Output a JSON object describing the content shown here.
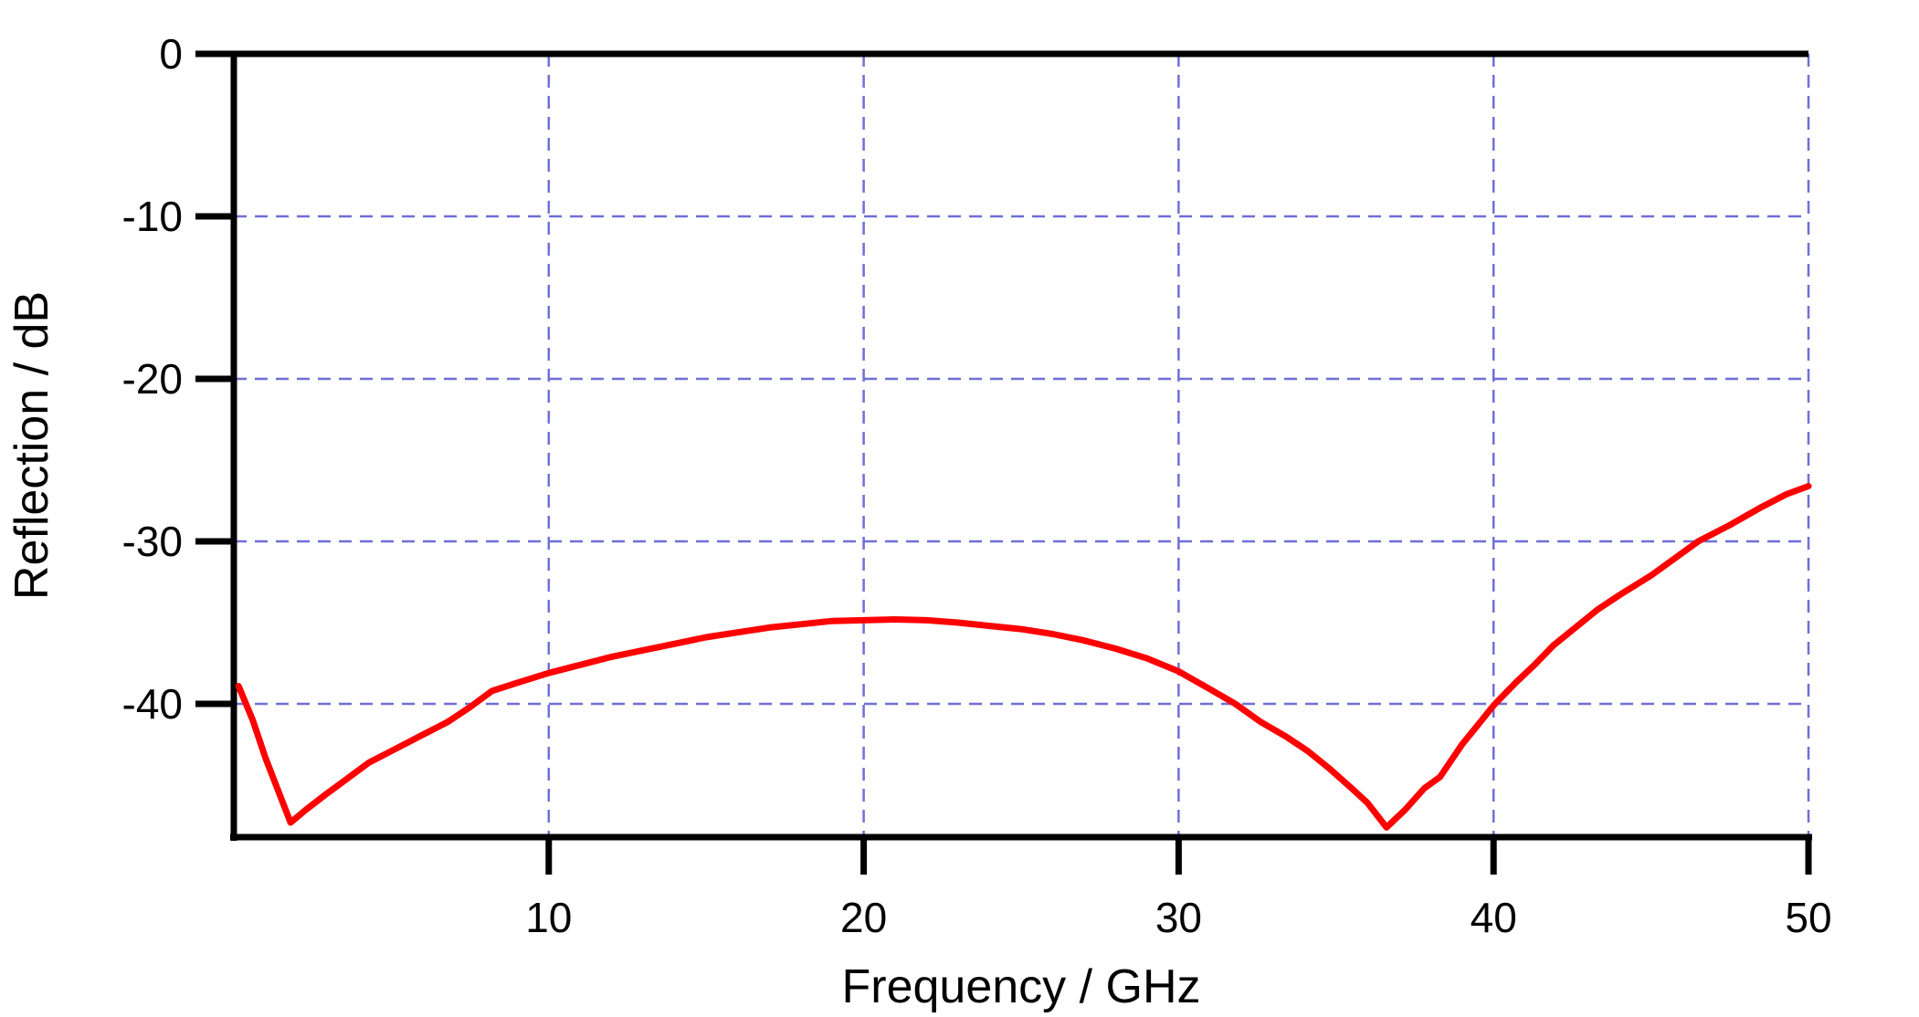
{
  "figure": {
    "background": "#ffffff"
  },
  "chart_data": {
    "type": "line",
    "title": "",
    "xlabel": "Frequency / GHz",
    "ylabel": "Reflection / dB",
    "xlim": [
      0,
      50
    ],
    "ylim": [
      -48.2,
      0
    ],
    "x_ticks": [
      10,
      20,
      30,
      40,
      50
    ],
    "y_ticks": [
      0,
      -10,
      -20,
      -30,
      -40
    ],
    "grid": {
      "style": "dashed",
      "color": "#6f6fd8",
      "x_lines": [
        10,
        20,
        30,
        40,
        50
      ],
      "y_lines": [
        -10,
        -20,
        -30,
        -40
      ]
    },
    "axis_color": "#000000",
    "legend": null,
    "series": [
      {
        "name": "Reflection",
        "color": "#ff0000",
        "width": 7,
        "points": [
          [
            0.15,
            -38.9
          ],
          [
            0.6,
            -41.0
          ],
          [
            1.0,
            -43.3
          ],
          [
            1.4,
            -45.3
          ],
          [
            1.8,
            -47.3
          ],
          [
            2.3,
            -46.5
          ],
          [
            2.9,
            -45.6
          ],
          [
            3.6,
            -44.6
          ],
          [
            4.3,
            -43.6
          ],
          [
            5.0,
            -42.9
          ],
          [
            5.9,
            -42.0
          ],
          [
            6.8,
            -41.1
          ],
          [
            7.5,
            -40.2
          ],
          [
            8.2,
            -39.2
          ],
          [
            9.0,
            -38.7
          ],
          [
            10.0,
            -38.1
          ],
          [
            11.0,
            -37.6
          ],
          [
            12.0,
            -37.1
          ],
          [
            13.0,
            -36.7
          ],
          [
            14.0,
            -36.3
          ],
          [
            15.0,
            -35.9
          ],
          [
            16.0,
            -35.6
          ],
          [
            17.0,
            -35.3
          ],
          [
            18.0,
            -35.1
          ],
          [
            19.0,
            -34.9
          ],
          [
            20.0,
            -34.85
          ],
          [
            21.0,
            -34.8
          ],
          [
            22.0,
            -34.85
          ],
          [
            23.0,
            -35.0
          ],
          [
            24.0,
            -35.2
          ],
          [
            25.0,
            -35.4
          ],
          [
            26.0,
            -35.7
          ],
          [
            27.0,
            -36.1
          ],
          [
            28.0,
            -36.6
          ],
          [
            29.0,
            -37.2
          ],
          [
            30.0,
            -38.0
          ],
          [
            31.0,
            -39.1
          ],
          [
            31.8,
            -40.0
          ],
          [
            32.6,
            -41.1
          ],
          [
            33.4,
            -42.0
          ],
          [
            34.1,
            -42.9
          ],
          [
            34.8,
            -44.0
          ],
          [
            35.5,
            -45.2
          ],
          [
            36.0,
            -46.1
          ],
          [
            36.6,
            -47.6
          ],
          [
            37.2,
            -46.5
          ],
          [
            37.8,
            -45.2
          ],
          [
            38.3,
            -44.5
          ],
          [
            39.0,
            -42.5
          ],
          [
            39.5,
            -41.3
          ],
          [
            40.0,
            -40.1
          ],
          [
            40.7,
            -38.7
          ],
          [
            41.3,
            -37.6
          ],
          [
            41.9,
            -36.4
          ],
          [
            43.3,
            -34.2
          ],
          [
            44.0,
            -33.3
          ],
          [
            45.0,
            -32.1
          ],
          [
            46.5,
            -30.0
          ],
          [
            47.5,
            -29.0
          ],
          [
            48.5,
            -27.9
          ],
          [
            49.3,
            -27.1
          ],
          [
            50.0,
            -26.6
          ]
        ]
      }
    ]
  }
}
